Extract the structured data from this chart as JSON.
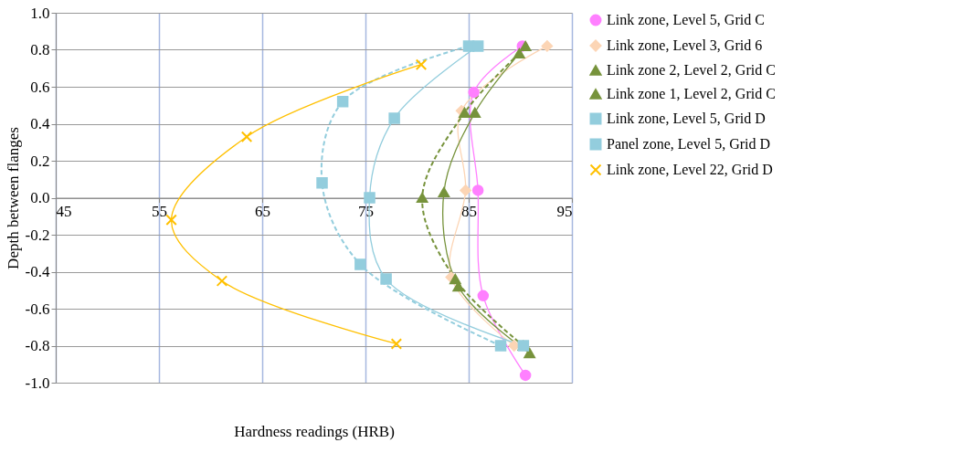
{
  "chart_data": {
    "type": "line",
    "xlabel": "Hardness readings (HRB)",
    "ylabel": "Depth between flanges",
    "xlim": [
      45,
      95
    ],
    "xticks": [
      45,
      55,
      65,
      75,
      85,
      95
    ],
    "ylim": [
      -1.0,
      1.0
    ],
    "yticks": [
      {
        "value": -1.0,
        "label": "-1.0"
      },
      {
        "value": -0.8,
        "label": "-0.8"
      },
      {
        "value": -0.6,
        "label": "-0.6"
      },
      {
        "value": -0.4,
        "label": "-0.4"
      },
      {
        "value": -0.2,
        "label": "-0.2"
      },
      {
        "value": 0.0,
        "label": "0.0"
      },
      {
        "value": 0.2,
        "label": "0.2"
      },
      {
        "value": 0.4,
        "label": "0.4"
      },
      {
        "value": 0.6,
        "label": "0.6"
      },
      {
        "value": 0.8,
        "label": "0.8"
      },
      {
        "value": 1.0,
        "label": "1.0"
      }
    ],
    "grid": true,
    "legend": "right",
    "series": [
      {
        "name": "Link zone, Level 5, Grid C",
        "color": "#ff80ff",
        "marker": "circle",
        "line_style": "solid",
        "x": [
          90.2,
          85.5,
          85.9,
          86.4,
          90.5
        ],
        "values": [
          0.82,
          0.57,
          0.04,
          -0.53,
          -0.96
        ]
      },
      {
        "name": "Link zone, Level 3, Grid 6",
        "color": "#fcd5b5",
        "marker": "diamond",
        "line_style": "solid",
        "x": [
          92.6,
          84.3,
          84.7,
          83.3,
          89.4
        ],
        "values": [
          0.82,
          0.47,
          0.04,
          -0.43,
          -0.8
        ]
      },
      {
        "name": "Link zone 2, Level 2, Grid C",
        "color": "#77933c",
        "marker": "triangle",
        "line_style": "solid",
        "x": [
          90.5,
          85.6,
          82.6,
          84.0,
          90.9
        ],
        "values": [
          0.82,
          0.46,
          0.03,
          -0.48,
          -0.84
        ]
      },
      {
        "name": "Link zone 1, Level 2, Grid C",
        "color": "#77933c",
        "marker": "triangle",
        "line_style": "dashed",
        "x": [
          89.9,
          84.6,
          80.5,
          83.7,
          90.3
        ],
        "values": [
          0.78,
          0.46,
          0.0,
          -0.44,
          -0.8
        ]
      },
      {
        "name": "Link zone, Level 5, Grid D",
        "color": "#93cddd",
        "marker": "square",
        "line_style": "solid",
        "x": [
          85.9,
          77.8,
          75.4,
          77.0,
          90.3
        ],
        "values": [
          0.82,
          0.43,
          0.0,
          -0.44,
          -0.8
        ]
      },
      {
        "name": "Panel zone, Level 5, Grid D",
        "color": "#93cddd",
        "marker": "square",
        "line_style": "dashed",
        "x": [
          85.0,
          72.8,
          70.8,
          74.5,
          88.1
        ],
        "values": [
          0.82,
          0.52,
          0.08,
          -0.36,
          -0.8
        ]
      },
      {
        "name": "Link zone, Level 22, Grid D",
        "color": "#ffc000",
        "marker": "cross",
        "line_style": "solid",
        "x": [
          80.4,
          63.5,
          56.2,
          61.1,
          78.0
        ],
        "values": [
          0.72,
          0.33,
          -0.12,
          -0.45,
          -0.79
        ]
      }
    ]
  }
}
